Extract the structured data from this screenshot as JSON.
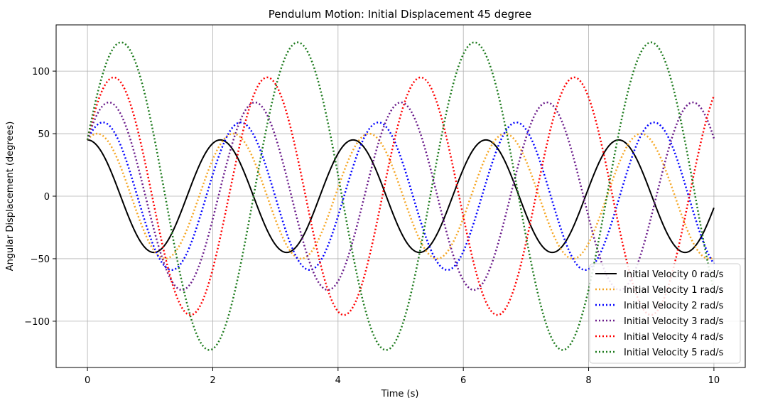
{
  "chart_data": {
    "type": "line",
    "title": "Pendulum Motion: Initial Displacement 45 degree",
    "xlabel": "Time (s)",
    "ylabel": "Angular Displacement (degrees)",
    "xlim": [
      -0.5,
      10.5
    ],
    "ylim": [
      -137,
      137
    ],
    "xticks": [
      0,
      2,
      4,
      6,
      8,
      10
    ],
    "xtick_labels": [
      "0",
      "2",
      "4",
      "6",
      "8",
      "10"
    ],
    "yticks": [
      -100,
      -50,
      0,
      50,
      100
    ],
    "ytick_labels": [
      "−100",
      "−50",
      "0",
      "50",
      "100"
    ],
    "grid": true,
    "legend_position": "lower-right",
    "initial_displacement_deg": 45,
    "series": [
      {
        "name": "Initial Velocity 0 rad/s",
        "v0": 0,
        "color": "#000000",
        "style": "solid",
        "amplitude": 45,
        "period": 2.12
      },
      {
        "name": "Initial Velocity 1 rad/s",
        "v0": 1,
        "color": "#f5a623",
        "style": "dotted",
        "amplitude": 50,
        "period": 2.17
      },
      {
        "name": "Initial Velocity 2 rad/s",
        "v0": 2,
        "color": "#0000ff",
        "style": "dotted",
        "amplitude": 59,
        "period": 2.2
      },
      {
        "name": "Initial Velocity 3 rad/s",
        "v0": 3,
        "color": "#6a1b8a",
        "style": "dotted",
        "amplitude": 75,
        "period": 2.33
      },
      {
        "name": "Initial Velocity 4 rad/s",
        "v0": 4,
        "color": "#ff0000",
        "style": "dotted",
        "amplitude": 95,
        "period": 2.45
      },
      {
        "name": "Initial Velocity 5 rad/s",
        "v0": 5,
        "color": "#1e7b1e",
        "style": "dotted",
        "amplitude": 123,
        "period": 2.82
      }
    ]
  }
}
